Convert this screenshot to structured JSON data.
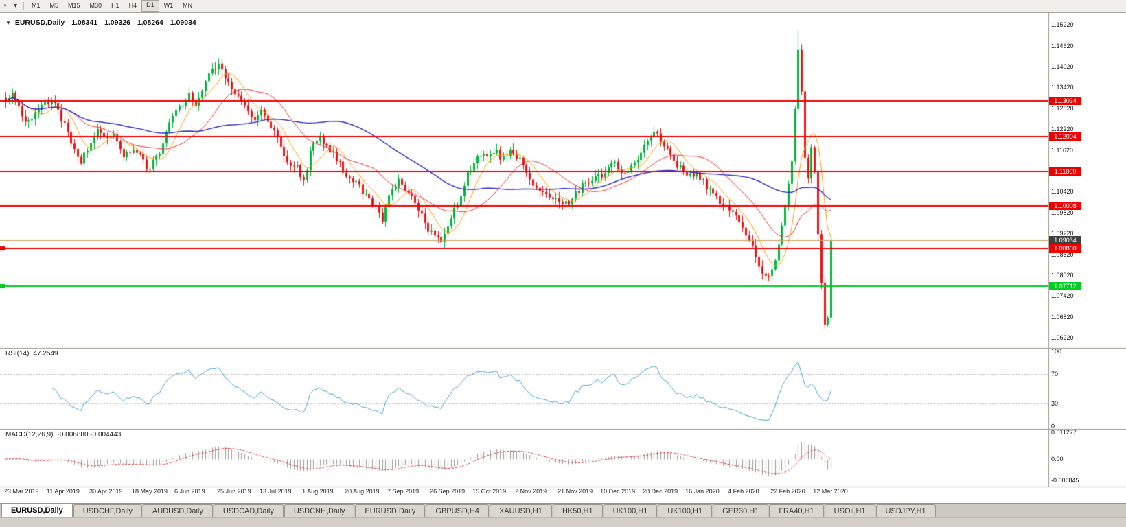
{
  "toolbar": {
    "icons": [
      {
        "name": "chart-cursor-icon",
        "glyph": "⌖"
      },
      {
        "name": "dropdown-caret-icon",
        "glyph": "▾"
      }
    ],
    "timeframes": [
      "M1",
      "M5",
      "M15",
      "M30",
      "H1",
      "H4",
      "D1",
      "W1",
      "MN"
    ],
    "active_timeframe": "D1"
  },
  "main_chart": {
    "title": {
      "marker": "▼",
      "symbol": "EURUSD,Daily",
      "open": "1.08341",
      "high": "1.09326",
      "low": "1.08264",
      "close": "1.09034"
    },
    "price_ticks": [
      "1.15220",
      "1.14620",
      "1.14020",
      "1.13420",
      "1.12820",
      "1.12220",
      "1.11620",
      "1.11020",
      "1.10420",
      "1.09820",
      "1.09220",
      "1.08620",
      "1.08020",
      "1.07420",
      "1.06820",
      "1.06220"
    ],
    "levels": [
      {
        "label": "1.13034",
        "price": 1.13034,
        "type": "resistance",
        "color": "#ee0000",
        "handle": false
      },
      {
        "label": "1.12004",
        "price": 1.12004,
        "type": "resistance",
        "color": "#ee0000",
        "handle": false
      },
      {
        "label": "1.11009",
        "price": 1.11009,
        "type": "resistance",
        "color": "#ee0000",
        "handle": false
      },
      {
        "label": "1.10008",
        "price": 1.10008,
        "type": "resistance",
        "color": "#ee0000",
        "handle": false
      },
      {
        "label": "1.08800",
        "price": 1.088,
        "type": "support",
        "color": "#ee0000",
        "handle": true
      },
      {
        "label": "1.07712",
        "price": 1.07712,
        "type": "support",
        "color": "#00cc22",
        "handle": true
      }
    ],
    "current_price": {
      "label": "1.09034",
      "price": 1.09034,
      "line_color": "#c8a064",
      "box_color": "#404040"
    }
  },
  "rsi_panel": {
    "label": "RSI(14)",
    "value": "47.2549",
    "ticks": [
      "100",
      "70",
      "30",
      "0"
    ],
    "tick_values": [
      100,
      70,
      30,
      0
    ],
    "levels": [
      70,
      30
    ]
  },
  "macd_panel": {
    "label": "MACD(12,26,9)",
    "values": "-0.006880 -0.004443",
    "ticks": [
      "0.011277",
      "0.00",
      "-0.008845"
    ],
    "tick_values": [
      0.011277,
      0,
      -0.008845
    ]
  },
  "date_axis": {
    "labels": [
      "23 Mar 2019",
      "11 Apr 2019",
      "30 Apr 2019",
      "18 May 2019",
      "6 Jun 2019",
      "25 Jun 2019",
      "13 Jul 2019",
      "1 Aug 2019",
      "20 Aug 2019",
      "7 Sep 2019",
      "26 Sep 2019",
      "15 Oct 2019",
      "2 Nov 2019",
      "21 Nov 2019",
      "10 Dec 2019",
      "28 Dec 2019",
      "16 Jan 2020",
      "4 Feb 2020",
      "22 Feb 2020",
      "12 Mar 2020"
    ]
  },
  "tabs": {
    "items": [
      {
        "label": "EURUSD,Daily",
        "active": true
      },
      {
        "label": "USDCHF,Daily",
        "active": false
      },
      {
        "label": "AUDUSD,Daily",
        "active": false
      },
      {
        "label": "USDCAD,Daily",
        "active": false
      },
      {
        "label": "USDCNH,Daily",
        "active": false
      },
      {
        "label": "EURUSD,Daily",
        "active": false
      },
      {
        "label": "GBPUSD,H4",
        "active": false
      },
      {
        "label": "XAUUSD,H1",
        "active": false
      },
      {
        "label": "HK50,H1",
        "active": false
      },
      {
        "label": "UK100,H1",
        "active": false
      },
      {
        "label": "UK100,H1",
        "active": false
      },
      {
        "label": "GER30,H1",
        "active": false
      },
      {
        "label": "FRA40,H1",
        "active": false
      },
      {
        "label": "USOil,H1",
        "active": false
      },
      {
        "label": "USDJPY,H1",
        "active": false
      }
    ]
  },
  "chart_data": {
    "type": "candlestick",
    "symbol": "EURUSD",
    "timeframe": "Daily",
    "last_ohlc": {
      "open": 1.08341,
      "high": 1.09326,
      "low": 1.08264,
      "close": 1.09034
    },
    "num_candles": 253,
    "candles_per_date_label": 13,
    "ylim": [
      1.0595,
      1.1544
    ],
    "x_date_labels": [
      "23 Mar 2019",
      "11 Apr 2019",
      "30 Apr 2019",
      "18 May 2019",
      "6 Jun 2019",
      "25 Jun 2019",
      "13 Jul 2019",
      "1 Aug 2019",
      "20 Aug 2019",
      "7 Sep 2019",
      "26 Sep 2019",
      "15 Oct 2019",
      "2 Nov 2019",
      "21 Nov 2019",
      "10 Dec 2019",
      "28 Dec 2019",
      "16 Jan 2020",
      "4 Feb 2020",
      "22 Feb 2020",
      "12 Mar 2020"
    ],
    "price_anchors": [
      [
        0,
        1.13
      ],
      [
        2,
        1.133
      ],
      [
        4,
        1.129
      ],
      [
        6,
        1.124
      ],
      [
        9,
        1.127
      ],
      [
        12,
        1.129
      ],
      [
        14,
        1.131
      ],
      [
        16,
        1.127
      ],
      [
        18,
        1.123
      ],
      [
        21,
        1.116
      ],
      [
        23,
        1.112
      ],
      [
        25,
        1.117
      ],
      [
        28,
        1.122
      ],
      [
        31,
        1.119
      ],
      [
        33,
        1.1215
      ],
      [
        36,
        1.115
      ],
      [
        39,
        1.117
      ],
      [
        42,
        1.1125
      ],
      [
        44,
        1.111
      ],
      [
        46,
        1.114
      ],
      [
        48,
        1.118
      ],
      [
        50,
        1.125
      ],
      [
        53,
        1.129
      ],
      [
        56,
        1.132
      ],
      [
        58,
        1.129
      ],
      [
        60,
        1.134
      ],
      [
        63,
        1.139
      ],
      [
        65,
        1.1405
      ],
      [
        67,
        1.137
      ],
      [
        70,
        1.133
      ],
      [
        73,
        1.128
      ],
      [
        76,
        1.124
      ],
      [
        78,
        1.127
      ],
      [
        80,
        1.1245
      ],
      [
        83,
        1.12
      ],
      [
        86,
        1.113
      ],
      [
        89,
        1.111
      ],
      [
        91,
        1.1075
      ],
      [
        93,
        1.115
      ],
      [
        95,
        1.12
      ],
      [
        98,
        1.117
      ],
      [
        101,
        1.114
      ],
      [
        104,
        1.109
      ],
      [
        107,
        1.107
      ],
      [
        110,
        1.103
      ],
      [
        113,
        1.099
      ],
      [
        115,
        1.0965
      ],
      [
        117,
        1.103
      ],
      [
        120,
        1.107
      ],
      [
        123,
        1.104
      ],
      [
        126,
        1.099
      ],
      [
        128,
        1.095
      ],
      [
        130,
        1.092
      ],
      [
        133,
        1.089
      ],
      [
        136,
        1.096
      ],
      [
        139,
        1.104
      ],
      [
        141,
        1.109
      ],
      [
        143,
        1.113
      ],
      [
        146,
        1.115
      ],
      [
        149,
        1.116
      ],
      [
        152,
        1.1135
      ],
      [
        155,
        1.116
      ],
      [
        158,
        1.112
      ],
      [
        161,
        1.107
      ],
      [
        164,
        1.1045
      ],
      [
        167,
        1.102
      ],
      [
        169,
        1.101
      ],
      [
        172,
        1.1015
      ],
      [
        175,
        1.105
      ],
      [
        178,
        1.1075
      ],
      [
        181,
        1.1085
      ],
      [
        183,
        1.1095
      ],
      [
        186,
        1.113
      ],
      [
        189,
        1.109
      ],
      [
        192,
        1.112
      ],
      [
        195,
        1.1175
      ],
      [
        197,
        1.1205
      ],
      [
        199,
        1.121
      ],
      [
        202,
        1.116
      ],
      [
        205,
        1.112
      ],
      [
        208,
        1.109
      ],
      [
        211,
        1.1095
      ],
      [
        214,
        1.106
      ],
      [
        217,
        1.102
      ],
      [
        219,
        1.1
      ],
      [
        221,
        1.0995
      ],
      [
        224,
        1.096
      ],
      [
        227,
        1.0905
      ],
      [
        230,
        1.083
      ],
      [
        232,
        1.079
      ],
      [
        234,
        1.082
      ],
      [
        236,
        1.089
      ],
      [
        238,
        1.1
      ],
      [
        240,
        1.113
      ],
      [
        241,
        1.128
      ],
      [
        242,
        1.145
      ],
      [
        243,
        1.133
      ],
      [
        244,
        1.114
      ],
      [
        245,
        1.108
      ],
      [
        246,
        1.117
      ],
      [
        247,
        1.11
      ],
      [
        248,
        1.092
      ],
      [
        249,
        1.078
      ],
      [
        250,
        1.066
      ],
      [
        251,
        1.068
      ],
      [
        252,
        1.0903
      ]
    ],
    "horizontal_lines": [
      1.13034,
      1.12004,
      1.11009,
      1.10008,
      1.088
    ],
    "green_line": 1.07712,
    "current_price": 1.09034,
    "moving_averages": [
      {
        "period": 8,
        "color": "#ff9900"
      },
      {
        "period": 21,
        "color": "#ff2a2a"
      },
      {
        "period": 55,
        "color": "#2a2ac8"
      }
    ],
    "rsi": {
      "period": 14,
      "current": 47.2549,
      "color": "#3e9edc",
      "levels": [
        70,
        30
      ]
    },
    "macd": {
      "fast": 12,
      "slow": 26,
      "signal": 9,
      "macd_value": -0.00688,
      "signal_value": -0.004443,
      "scale_max": 0.011277,
      "scale_min": -0.008845,
      "hist_color": "#9a9a9a",
      "signal_color": "#e03030"
    },
    "colors": {
      "bull": "#00b33c",
      "bear": "#e81414"
    }
  }
}
